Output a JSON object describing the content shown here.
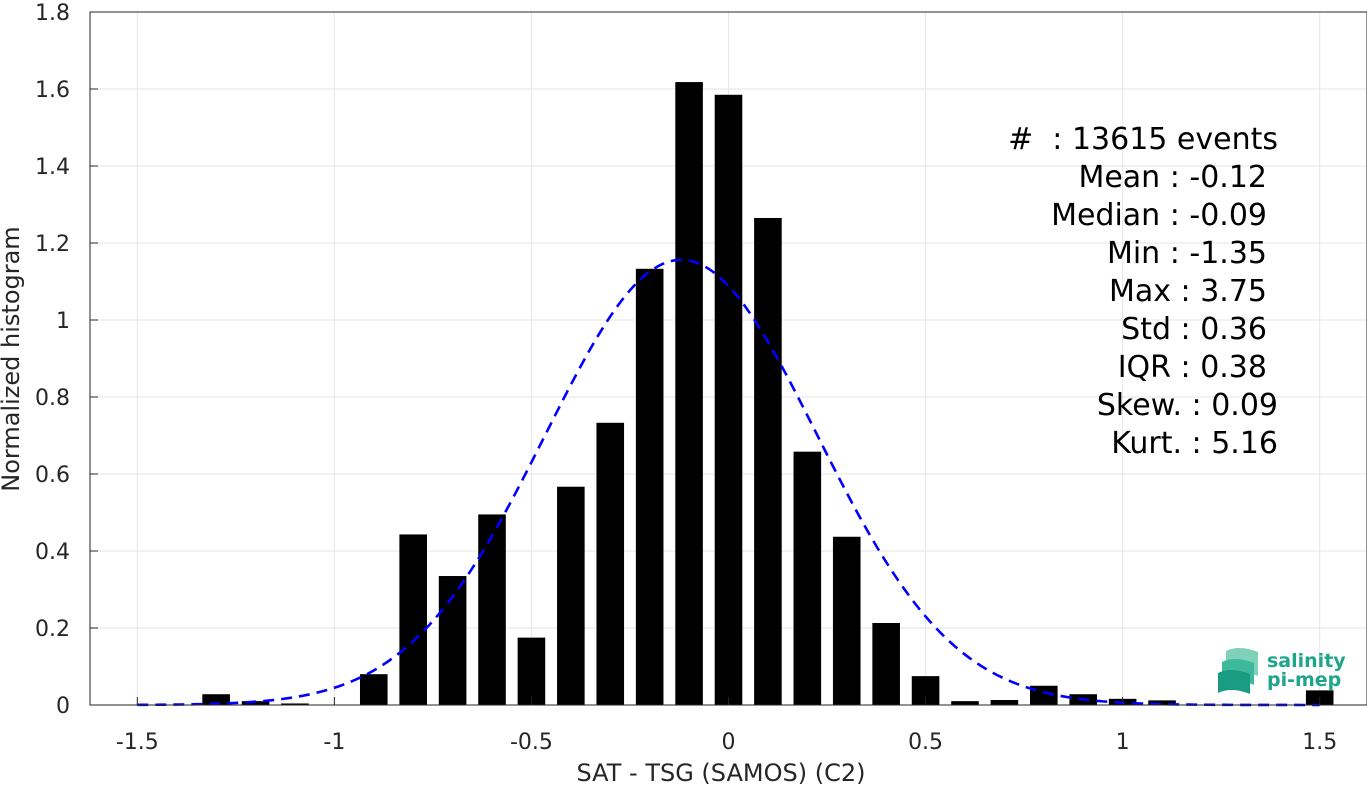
{
  "chart_data": {
    "type": "bar",
    "xlabel": "SAT - TSG (SAMOS) (C2)",
    "ylabel": "Normalized histogram",
    "xlim": [
      -1.62,
      1.62
    ],
    "ylim": [
      0,
      1.8
    ],
    "grid": true,
    "x_ticks": [
      "-1.5",
      "-1",
      "-0.5",
      "0",
      "0.5",
      "1",
      "1.5"
    ],
    "x_tick_values": [
      -1.5,
      -1,
      -0.5,
      0,
      0.5,
      1,
      1.5
    ],
    "y_ticks": [
      "0",
      "0.2",
      "0.4",
      "0.6",
      "0.8",
      "1",
      "1.2",
      "1.4",
      "1.6",
      "1.8"
    ],
    "y_tick_values": [
      0,
      0.2,
      0.4,
      0.6,
      0.8,
      1,
      1.2,
      1.4,
      1.6,
      1.8
    ],
    "bar_width": 0.07,
    "bars": [
      {
        "x": -1.5,
        "y": 0.0
      },
      {
        "x": -1.3,
        "y": 0.028
      },
      {
        "x": -1.2,
        "y": 0.01
      },
      {
        "x": -1.1,
        "y": 0.004
      },
      {
        "x": -1.0,
        "y": 0.0
      },
      {
        "x": -0.9,
        "y": 0.08
      },
      {
        "x": -0.8,
        "y": 0.443
      },
      {
        "x": -0.7,
        "y": 0.335
      },
      {
        "x": -0.6,
        "y": 0.495
      },
      {
        "x": -0.5,
        "y": 0.175
      },
      {
        "x": -0.4,
        "y": 0.567
      },
      {
        "x": -0.3,
        "y": 0.733
      },
      {
        "x": -0.2,
        "y": 1.133
      },
      {
        "x": -0.1,
        "y": 1.618
      },
      {
        "x": 0.0,
        "y": 1.585
      },
      {
        "x": 0.1,
        "y": 1.265
      },
      {
        "x": 0.2,
        "y": 0.658
      },
      {
        "x": 0.3,
        "y": 0.437
      },
      {
        "x": 0.4,
        "y": 0.213
      },
      {
        "x": 0.5,
        "y": 0.075
      },
      {
        "x": 0.6,
        "y": 0.01
      },
      {
        "x": 0.7,
        "y": 0.013
      },
      {
        "x": 0.8,
        "y": 0.05
      },
      {
        "x": 0.9,
        "y": 0.028
      },
      {
        "x": 1.0,
        "y": 0.016
      },
      {
        "x": 1.1,
        "y": 0.012
      },
      {
        "x": 1.5,
        "y": 0.038
      }
    ],
    "fit_curve": {
      "color": "#0000ff",
      "style": "dashed",
      "mean": -0.12,
      "std": 0.345,
      "x_range": [
        -1.5,
        1.5
      ]
    },
    "bar_color": "#000000"
  },
  "stats": {
    "lines": [
      "#  : 13615 events",
      "Mean : -0.12",
      "Median : -0.09",
      "Min : -1.35",
      "Max : 3.75",
      "Std : 0.36",
      "IQR : 0.38",
      "Skew. : 0.09",
      "Kurt. : 5.16"
    ]
  },
  "logo": {
    "line1": "salinity",
    "line2": "pi-mep"
  }
}
